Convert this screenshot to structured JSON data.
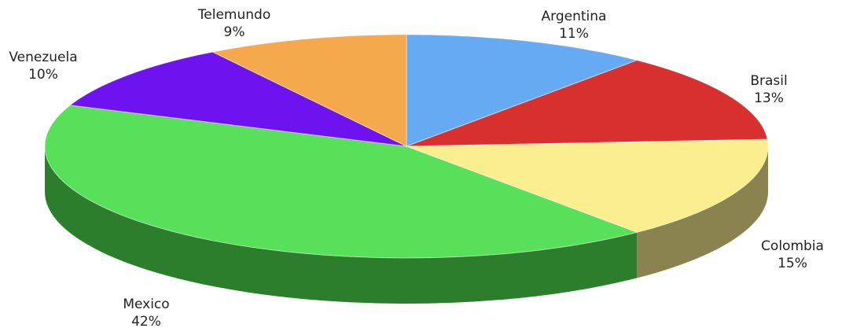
{
  "chart_data": {
    "type": "pie",
    "style": "3d",
    "title": "",
    "slices": [
      {
        "label": "Argentina",
        "value": 11,
        "value_label": "11%",
        "color": "#66aaf4",
        "side_color": "#3f6e9e"
      },
      {
        "label": "Brasil",
        "value": 13,
        "value_label": "13%",
        "color": "#d8302f",
        "side_color": "#8a1f1e"
      },
      {
        "label": "Colombia",
        "value": 15,
        "value_label": "15%",
        "color": "#fbee8e",
        "side_color": "#8a8350"
      },
      {
        "label": "Mexico",
        "value": 42,
        "value_label": "42%",
        "color": "#58e05a",
        "side_color": "#2c7d2c"
      },
      {
        "label": "Venezuela",
        "value": 10,
        "value_label": "10%",
        "color": "#6f12f0",
        "side_color": "#3f0a8c"
      },
      {
        "label": "Telemundo",
        "value": 9,
        "value_label": "9%",
        "color": "#f6a84c",
        "side_color": "#a3692b"
      }
    ],
    "legend": "none"
  }
}
